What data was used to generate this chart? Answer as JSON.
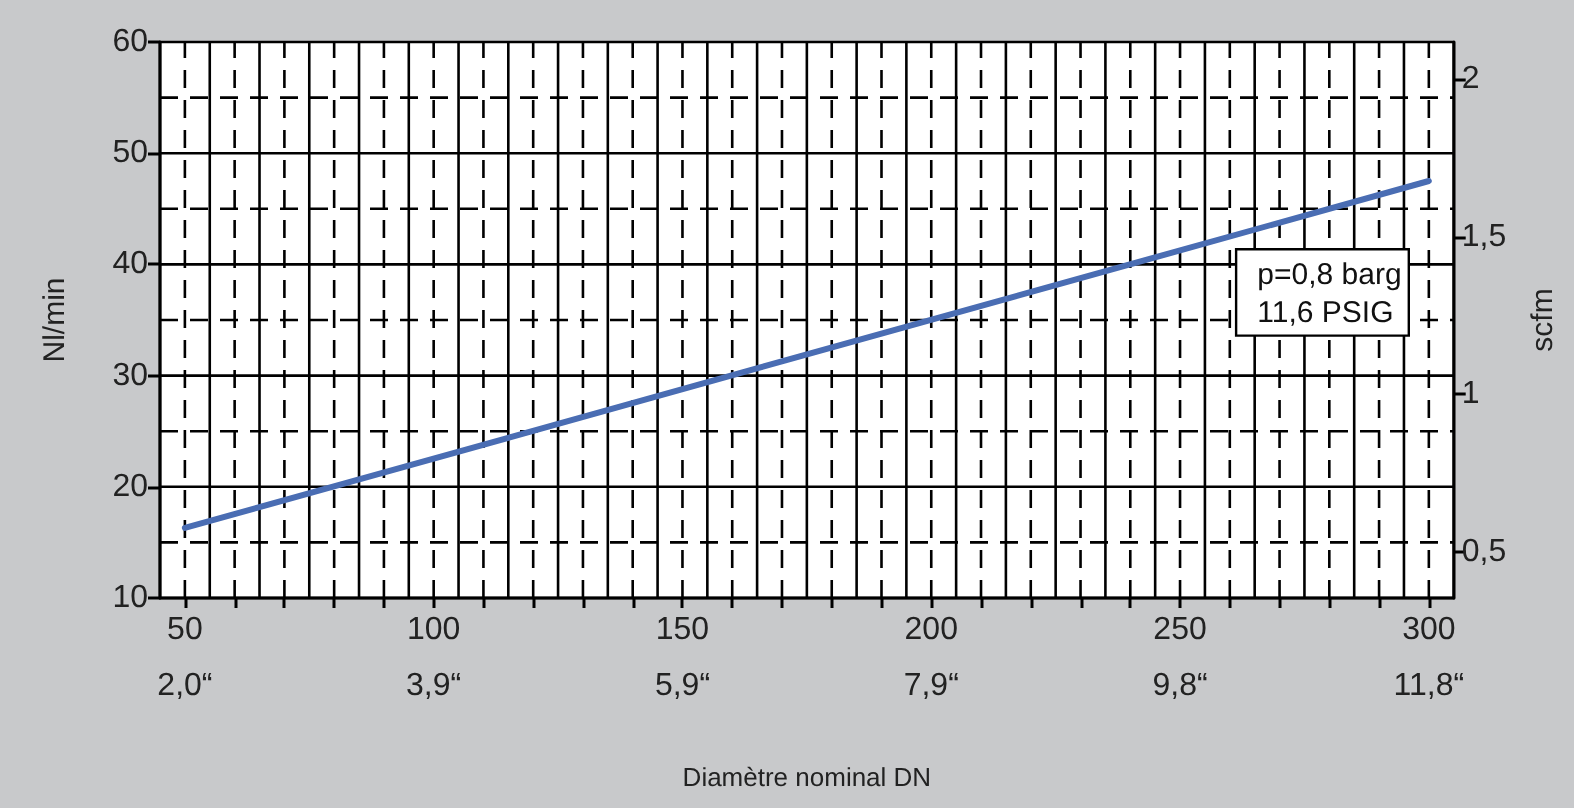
{
  "chart_data": {
    "type": "line",
    "xlabel": "Diamètre nominal DN",
    "ylabel": "Nl/min",
    "y2label": "scfm",
    "x": [
      50,
      300
    ],
    "series": [
      {
        "color": "#4a6db3",
        "values": [
          16.3,
          47.5
        ]
      }
    ],
    "xlim": [
      45,
      305
    ],
    "xticks": [
      50,
      {
        "value": 60,
        "label": null
      },
      {
        "value": 70,
        "label": null
      },
      {
        "value": 80,
        "label": null
      },
      {
        "value": 90,
        "label": null
      },
      100,
      {
        "value": 110,
        "label": null
      },
      {
        "value": 120,
        "label": null
      },
      {
        "value": 130,
        "label": null
      },
      {
        "value": 140,
        "label": null
      },
      150,
      {
        "value": 160,
        "label": null
      },
      {
        "value": 170,
        "label": null
      },
      {
        "value": 180,
        "label": null
      },
      {
        "value": 190,
        "label": null
      },
      200,
      {
        "value": 210,
        "label": null
      },
      {
        "value": 220,
        "label": null
      },
      {
        "value": 230,
        "label": null
      },
      {
        "value": 240,
        "label": null
      },
      250,
      {
        "value": 260,
        "label": null
      },
      {
        "value": 270,
        "label": null
      },
      {
        "value": 280,
        "label": null
      },
      {
        "value": 290,
        "label": null
      },
      300
    ],
    "x2lim": [
      1.772,
      12.008
    ],
    "x2ticks": [
      {
        "value": 1.969,
        "label": "2,0“"
      },
      {
        "value": 3.937,
        "label": "3,9“"
      },
      {
        "value": 5.906,
        "label": "5,9“"
      },
      {
        "value": 7.874,
        "label": "7,9“"
      },
      {
        "value": 9.843,
        "label": "9,8“"
      },
      {
        "value": 11.811,
        "label": "11,8“"
      }
    ],
    "ylim": [
      10,
      60
    ],
    "yticks": [
      10,
      20,
      30,
      40,
      50,
      60
    ],
    "y2lim": [
      0.353,
      2.119
    ],
    "y2ticks": [
      {
        "value": 0.5,
        "label": "0,5"
      },
      1,
      {
        "value": 1.5,
        "label": "1,5"
      },
      2
    ],
    "annotations": [
      "p=0,8 barg\n11,6 PSIG"
    ],
    "grid": true,
    "marker": "none",
    "line_style": "solid"
  }
}
